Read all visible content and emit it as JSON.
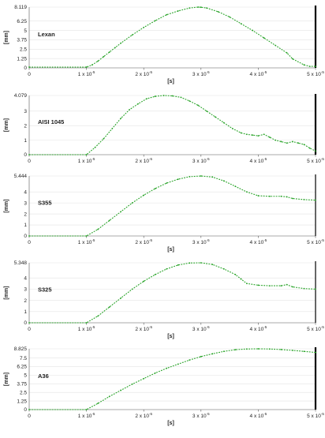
{
  "colors": {
    "series": "#27a327",
    "axis": "#555555",
    "grid": "#e3e3e3",
    "end_marker": "#000000"
  },
  "chart_data": [
    {
      "type": "line",
      "title": "Lexan",
      "ylabel": "[mm]",
      "xlabel": "[s]",
      "xlim": [
        0,
        5e-05
      ],
      "ylim": [
        0,
        8.119
      ],
      "yticks": [
        0,
        1.25,
        2.5,
        3.75,
        5,
        6.25,
        8.119
      ],
      "ytick_labels": [
        "0",
        "1.25",
        "2.5",
        "3.75",
        "5",
        "6.25",
        "8.119"
      ],
      "xticks": [
        0,
        1e-05,
        2e-05,
        3e-05,
        4e-05,
        5e-05
      ],
      "xtick_labels": [
        {
          "base": "0",
          "exp": ""
        },
        {
          "base": "1 x 10",
          "exp": "-5"
        },
        {
          "base": "2 x 10",
          "exp": "-5"
        },
        {
          "base": "3 x 10",
          "exp": "-5"
        },
        {
          "base": "4 x 10",
          "exp": "-5"
        },
        {
          "base": "5 x 10",
          "exp": "-5"
        }
      ],
      "grid": true,
      "series": [
        {
          "x": [
            0,
            1e-05,
            1.1e-05,
            1.2e-05,
            1.3e-05,
            1.4e-05,
            1.5e-05,
            1.6e-05,
            1.8e-05,
            2e-05,
            2.2e-05,
            2.4e-05,
            2.6e-05,
            2.8e-05,
            2.95e-05,
            3e-05,
            3.1e-05,
            3.3e-05,
            3.5e-05,
            3.7e-05,
            3.9e-05,
            4.1e-05,
            4.3e-05,
            4.5e-05,
            4.6e-05,
            4.8e-05,
            4.9e-05,
            5e-05
          ],
          "y": [
            0.1,
            0.1,
            0.4,
            0.9,
            1.5,
            2.1,
            2.7,
            3.3,
            4.4,
            5.4,
            6.3,
            7.1,
            7.6,
            8.0,
            8.119,
            8.1,
            8.0,
            7.5,
            6.8,
            5.9,
            5.0,
            4.0,
            3.0,
            2.0,
            1.2,
            0.4,
            0.2,
            0.2
          ]
        }
      ]
    },
    {
      "type": "line",
      "title": "AISI 1045",
      "ylabel": "[mm]",
      "xlabel": "",
      "xlim": [
        0,
        5e-05
      ],
      "ylim": [
        0,
        4.079
      ],
      "yticks": [
        0,
        1,
        2,
        3,
        4.079
      ],
      "ytick_labels": [
        "0",
        "1",
        "2",
        "3",
        "4.079"
      ],
      "xticks": [
        0,
        1e-05,
        2e-05,
        3e-05,
        4e-05,
        5e-05
      ],
      "xtick_labels": [
        {
          "base": "0",
          "exp": ""
        },
        {
          "base": "1 x 10",
          "exp": "-5"
        },
        {
          "base": "2 x 10",
          "exp": "-5"
        },
        {
          "base": "3 x 10",
          "exp": "-5"
        },
        {
          "base": "4 x 10",
          "exp": "-5"
        },
        {
          "base": "5 x 10",
          "exp": "-5"
        }
      ],
      "grid": true,
      "series": [
        {
          "x": [
            0,
            1e-05,
            1.15e-05,
            1.3e-05,
            1.45e-05,
            1.6e-05,
            1.75e-05,
            1.9e-05,
            2.05e-05,
            2.2e-05,
            2.35e-05,
            2.5e-05,
            2.65e-05,
            2.8e-05,
            2.95e-05,
            3.1e-05,
            3.25e-05,
            3.4e-05,
            3.55e-05,
            3.7e-05,
            3.8e-05,
            3.9e-05,
            4e-05,
            4.1e-05,
            4.2e-05,
            4.3e-05,
            4.4e-05,
            4.5e-05,
            4.6e-05,
            4.7e-05,
            4.8e-05,
            4.9e-05,
            5e-05
          ],
          "y": [
            0,
            0,
            0.5,
            1.1,
            1.8,
            2.5,
            3.1,
            3.5,
            3.85,
            4.02,
            4.079,
            4.05,
            3.95,
            3.7,
            3.4,
            3.0,
            2.6,
            2.2,
            1.8,
            1.5,
            1.4,
            1.35,
            1.3,
            1.4,
            1.2,
            1.0,
            0.9,
            0.8,
            0.9,
            0.8,
            0.7,
            0.45,
            0.25
          ]
        }
      ]
    },
    {
      "type": "line",
      "title": "S355",
      "ylabel": "[mm]",
      "xlabel": "[s]",
      "xlim": [
        0,
        5e-05
      ],
      "ylim": [
        0,
        5.444
      ],
      "yticks": [
        0,
        1,
        2,
        3,
        4,
        5.444
      ],
      "ytick_labels": [
        "0",
        "1",
        "2",
        "3",
        "4",
        "5.444"
      ],
      "xticks": [
        0,
        1e-05,
        2e-05,
        3e-05,
        4e-05,
        5e-05
      ],
      "xtick_labels": [
        {
          "base": "0",
          "exp": ""
        },
        {
          "base": "1 x 10",
          "exp": "-5"
        },
        {
          "base": "2 x 10",
          "exp": "-5"
        },
        {
          "base": "3 x 10",
          "exp": "-5"
        },
        {
          "base": "4 x 10",
          "exp": "-5"
        },
        {
          "base": "5 x 10",
          "exp": "-5"
        }
      ],
      "grid": true,
      "series": [
        {
          "x": [
            0,
            1e-05,
            1.2e-05,
            1.4e-05,
            1.6e-05,
            1.8e-05,
            2e-05,
            2.2e-05,
            2.4e-05,
            2.6e-05,
            2.8e-05,
            3e-05,
            3.2e-05,
            3.4e-05,
            3.6e-05,
            3.8e-05,
            4e-05,
            4.2e-05,
            4.4e-05,
            4.5e-05,
            4.6e-05,
            4.8e-05,
            5e-05
          ],
          "y": [
            0,
            0,
            0.6,
            1.4,
            2.2,
            3.0,
            3.7,
            4.3,
            4.8,
            5.15,
            5.38,
            5.444,
            5.35,
            5.0,
            4.5,
            4.0,
            3.65,
            3.6,
            3.6,
            3.55,
            3.4,
            3.3,
            3.25
          ]
        }
      ]
    },
    {
      "type": "line",
      "title": "S325",
      "ylabel": "[mm]",
      "xlabel": "[s]",
      "xlim": [
        0,
        5e-05
      ],
      "ylim": [
        0,
        5.348
      ],
      "yticks": [
        0,
        1,
        2,
        3,
        4,
        5.348
      ],
      "ytick_labels": [
        "0",
        "1",
        "2",
        "3",
        "4",
        "5.348"
      ],
      "xticks": [
        0,
        1e-05,
        2e-05,
        3e-05,
        4e-05,
        5e-05
      ],
      "xtick_labels": [
        {
          "base": "0",
          "exp": ""
        },
        {
          "base": "1 x 10",
          "exp": "-5"
        },
        {
          "base": "2 x 10",
          "exp": "-5"
        },
        {
          "base": "3 x 10",
          "exp": "-5"
        },
        {
          "base": "4 x 10",
          "exp": "-5"
        },
        {
          "base": "5 x 10",
          "exp": "-5"
        }
      ],
      "grid": true,
      "series": [
        {
          "x": [
            0,
            1e-05,
            1.2e-05,
            1.4e-05,
            1.6e-05,
            1.8e-05,
            2e-05,
            2.2e-05,
            2.4e-05,
            2.6e-05,
            2.8e-05,
            3e-05,
            3.2e-05,
            3.4e-05,
            3.6e-05,
            3.7e-05,
            3.8e-05,
            4e-05,
            4.2e-05,
            4.4e-05,
            4.5e-05,
            4.6e-05,
            4.8e-05,
            5e-05
          ],
          "y": [
            0,
            0,
            0.6,
            1.4,
            2.2,
            3.0,
            3.7,
            4.3,
            4.8,
            5.15,
            5.33,
            5.348,
            5.2,
            4.8,
            4.3,
            3.9,
            3.5,
            3.35,
            3.3,
            3.3,
            3.4,
            3.2,
            3.05,
            3.0
          ]
        }
      ]
    },
    {
      "type": "line",
      "title": "A36",
      "ylabel": "[mm]",
      "xlabel": "[s]",
      "xlim": [
        0,
        5e-05
      ],
      "ylim": [
        0,
        8.825
      ],
      "yticks": [
        0,
        1.25,
        2.5,
        3.75,
        5,
        6.25,
        7.5,
        8.825
      ],
      "ytick_labels": [
        "0",
        "1.25",
        "2.5",
        "3.75",
        "5",
        "6.25",
        "7.5",
        "8.825"
      ],
      "xticks": [
        0,
        1e-05,
        2e-05,
        3e-05,
        4e-05,
        5e-05
      ],
      "xtick_labels": [
        {
          "base": "0",
          "exp": ""
        },
        {
          "base": "1 x 10",
          "exp": "-5"
        },
        {
          "base": "2 x 10",
          "exp": "-5"
        },
        {
          "base": "3 x 10",
          "exp": "-5"
        },
        {
          "base": "4 x 10",
          "exp": "-5"
        },
        {
          "base": "5 x 10",
          "exp": "-5"
        }
      ],
      "grid": true,
      "series": [
        {
          "x": [
            0,
            1e-05,
            1.2e-05,
            1.4e-05,
            1.6e-05,
            1.8e-05,
            2e-05,
            2.2e-05,
            2.4e-05,
            2.6e-05,
            2.8e-05,
            3e-05,
            3.2e-05,
            3.4e-05,
            3.6e-05,
            3.8e-05,
            4e-05,
            4.2e-05,
            4.4e-05,
            4.6e-05,
            4.8e-05,
            5e-05
          ],
          "y": [
            0,
            0,
            0.9,
            1.9,
            2.8,
            3.7,
            4.5,
            5.3,
            6.0,
            6.6,
            7.2,
            7.7,
            8.1,
            8.45,
            8.7,
            8.8,
            8.825,
            8.8,
            8.72,
            8.6,
            8.45,
            8.3
          ]
        }
      ]
    }
  ]
}
